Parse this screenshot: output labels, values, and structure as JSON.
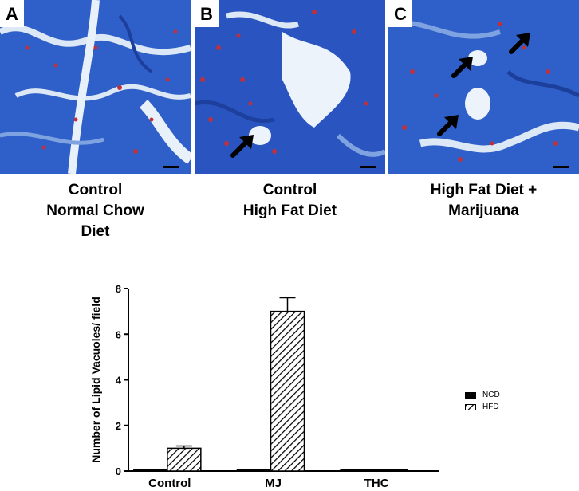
{
  "panels": [
    {
      "letter": "A",
      "caption": [
        "Control",
        "Normal Chow",
        "Diet"
      ]
    },
    {
      "letter": "B",
      "caption": [
        "Control",
        "High Fat Diet"
      ]
    },
    {
      "letter": "C",
      "caption": [
        "High Fat Diet +",
        "Marijuana"
      ]
    }
  ],
  "colors": {
    "stain_blue": "#2b57c4",
    "nuclei": "#c0303a",
    "vacuole": "#ecf3fb"
  },
  "chart_data": {
    "type": "bar",
    "categories": [
      "Control",
      "MJ",
      "THC"
    ],
    "series": [
      {
        "name": "NCD",
        "values": [
          0.05,
          0.05,
          0.05
        ],
        "fill": "solid"
      },
      {
        "name": "HFD",
        "values": [
          1.0,
          7.0,
          0.05
        ],
        "errors": [
          0.1,
          0.6,
          0
        ],
        "fill": "hatched"
      }
    ],
    "ylabel": "Number of Lipid Vacuoles/ field",
    "ylim": [
      0,
      8
    ],
    "yticks": [
      0,
      2,
      4,
      6,
      8
    ],
    "grid": false,
    "legend_position": "right"
  }
}
